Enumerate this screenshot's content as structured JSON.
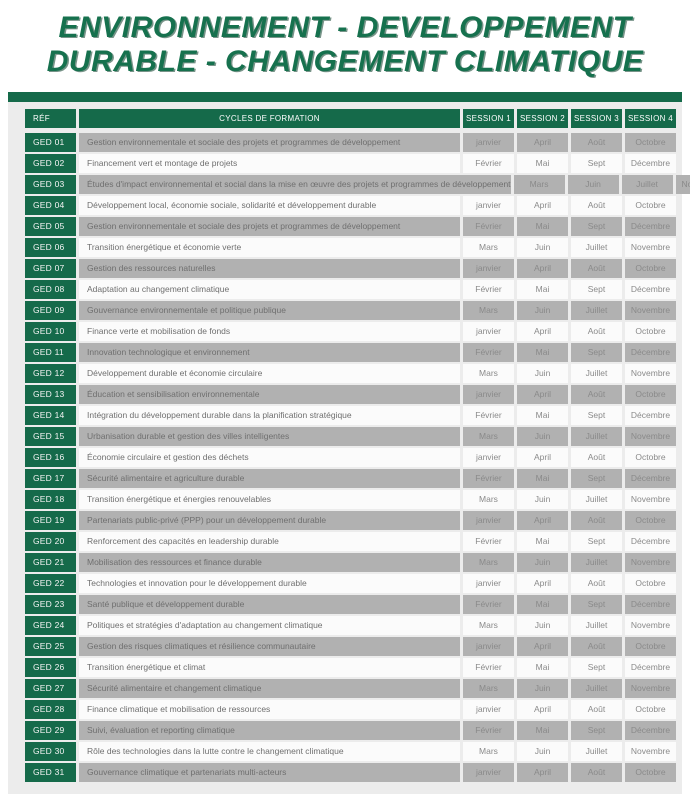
{
  "title": {
    "line1": "ENVIRONNEMENT - DEVELOPPEMENT",
    "line2": "DURABLE - CHANGEMENT CLIMATIQUE"
  },
  "colors": {
    "title_green": "#16714e",
    "table_green": "#156a4a",
    "stripe_gray": "#b1b1b1",
    "panel_gray": "#ececec",
    "row_light": "#fbfbfb",
    "formation_text": "#6f6f6f",
    "month_text": "#8a8a8a"
  },
  "table": {
    "headers": [
      "RÉF",
      "CYCLES DE FORMATION",
      "SESSION 1",
      "SESSION 2",
      "SESSION 3",
      "SESSION 4"
    ],
    "rows": [
      {
        "ref": "GED 01",
        "formation": "Gestion environnementale et sociale des projets et programmes de développement",
        "sessions": [
          "janvier",
          "April",
          "Août",
          "Octobre"
        ]
      },
      {
        "ref": "GED 02",
        "formation": "Financement vert et montage de projets",
        "sessions": [
          "Février",
          "Mai",
          "Sept",
          "Décembre"
        ]
      },
      {
        "ref": "GED 03",
        "formation": "Études d'impact environnemental et social dans la mise en œuvre des projets et programmes de développement",
        "sessions": [
          "Mars",
          "Juin",
          "Juillet",
          "Novembre"
        ]
      },
      {
        "ref": "GED 04",
        "formation": "Développement local, économie sociale, solidarité et développement durable",
        "sessions": [
          "janvier",
          "April",
          "Août",
          "Octobre"
        ]
      },
      {
        "ref": "GED 05",
        "formation": "Gestion environnementale et sociale des projets et programmes de développement",
        "sessions": [
          "Février",
          "Mai",
          "Sept",
          "Décembre"
        ]
      },
      {
        "ref": "GED 06",
        "formation": "Transition énergétique et économie verte",
        "sessions": [
          "Mars",
          "Juin",
          "Juillet",
          "Novembre"
        ]
      },
      {
        "ref": "GED 07",
        "formation": "Gestion des ressources naturelles",
        "sessions": [
          "janvier",
          "April",
          "Août",
          "Octobre"
        ]
      },
      {
        "ref": "GED 08",
        "formation": "Adaptation au changement climatique",
        "sessions": [
          "Février",
          "Mai",
          "Sept",
          "Décembre"
        ]
      },
      {
        "ref": "GED 09",
        "formation": "Gouvernance environnementale et politique publique",
        "sessions": [
          "Mars",
          "Juin",
          "Juillet",
          "Novembre"
        ]
      },
      {
        "ref": "GED 10",
        "formation": "Finance verte et mobilisation de fonds",
        "sessions": [
          "janvier",
          "April",
          "Août",
          "Octobre"
        ]
      },
      {
        "ref": "GED 11",
        "formation": "Innovation technologique et environnement",
        "sessions": [
          "Février",
          "Mai",
          "Sept",
          "Décembre"
        ]
      },
      {
        "ref": "GED 12",
        "formation": "Développement durable et économie circulaire",
        "sessions": [
          "Mars",
          "Juin",
          "Juillet",
          "Novembre"
        ]
      },
      {
        "ref": "GED 13",
        "formation": "Éducation et sensibilisation environnementale",
        "sessions": [
          "janvier",
          "April",
          "Août",
          "Octobre"
        ]
      },
      {
        "ref": "GED 14",
        "formation": "Intégration du développement durable dans la planification stratégique",
        "sessions": [
          "Février",
          "Mai",
          "Sept",
          "Décembre"
        ]
      },
      {
        "ref": "GED 15",
        "formation": "Urbanisation durable et gestion des villes intelligentes",
        "sessions": [
          "Mars",
          "Juin",
          "Juillet",
          "Novembre"
        ]
      },
      {
        "ref": "GED 16",
        "formation": "Économie circulaire et gestion des déchets",
        "sessions": [
          "janvier",
          "April",
          "Août",
          "Octobre"
        ]
      },
      {
        "ref": "GED 17",
        "formation": "Sécurité alimentaire et agriculture durable",
        "sessions": [
          "Février",
          "Mai",
          "Sept",
          "Décembre"
        ]
      },
      {
        "ref": "GED 18",
        "formation": "Transition énergétique et énergies renouvelables",
        "sessions": [
          "Mars",
          "Juin",
          "Juillet",
          "Novembre"
        ]
      },
      {
        "ref": "GED 19",
        "formation": "Partenariats public-privé (PPP) pour un développement durable",
        "sessions": [
          "janvier",
          "April",
          "Août",
          "Octobre"
        ]
      },
      {
        "ref": "GED 20",
        "formation": "Renforcement des capacités en leadership durable",
        "sessions": [
          "Février",
          "Mai",
          "Sept",
          "Décembre"
        ]
      },
      {
        "ref": "GED 21",
        "formation": "Mobilisation des ressources et finance durable",
        "sessions": [
          "Mars",
          "Juin",
          "Juillet",
          "Novembre"
        ]
      },
      {
        "ref": "GED 22",
        "formation": "Technologies et innovation pour le développement durable",
        "sessions": [
          "janvier",
          "April",
          "Août",
          "Octobre"
        ]
      },
      {
        "ref": "GED 23",
        "formation": "Santé publique et développement durable",
        "sessions": [
          "Février",
          "Mai",
          "Sept",
          "Décembre"
        ]
      },
      {
        "ref": "GED 24",
        "formation": "Politiques et stratégies d'adaptation au changement climatique",
        "sessions": [
          "Mars",
          "Juin",
          "Juillet",
          "Novembre"
        ]
      },
      {
        "ref": "GED 25",
        "formation": "Gestion des risques climatiques et résilience communautaire",
        "sessions": [
          "janvier",
          "April",
          "Août",
          "Octobre"
        ]
      },
      {
        "ref": "GED 26",
        "formation": "Transition énergétique et climat",
        "sessions": [
          "Février",
          "Mai",
          "Sept",
          "Décembre"
        ]
      },
      {
        "ref": "GED 27",
        "formation": "Sécurité alimentaire et changement climatique",
        "sessions": [
          "Mars",
          "Juin",
          "Juillet",
          "Novembre"
        ]
      },
      {
        "ref": "GED 28",
        "formation": "Finance climatique et mobilisation de ressources",
        "sessions": [
          "janvier",
          "April",
          "Août",
          "Octobre"
        ]
      },
      {
        "ref": "GED 29",
        "formation": "Suivi, évaluation et reporting climatique",
        "sessions": [
          "Février",
          "Mai",
          "Sept",
          "Décembre"
        ]
      },
      {
        "ref": "GED 30",
        "formation": "Rôle des technologies dans la lutte contre le changement climatique",
        "sessions": [
          "Mars",
          "Juin",
          "Juillet",
          "Novembre"
        ]
      },
      {
        "ref": "GED 31",
        "formation": "Gouvernance climatique et partenariats multi-acteurs",
        "sessions": [
          "janvier",
          "April",
          "Août",
          "Octobre"
        ]
      }
    ]
  }
}
